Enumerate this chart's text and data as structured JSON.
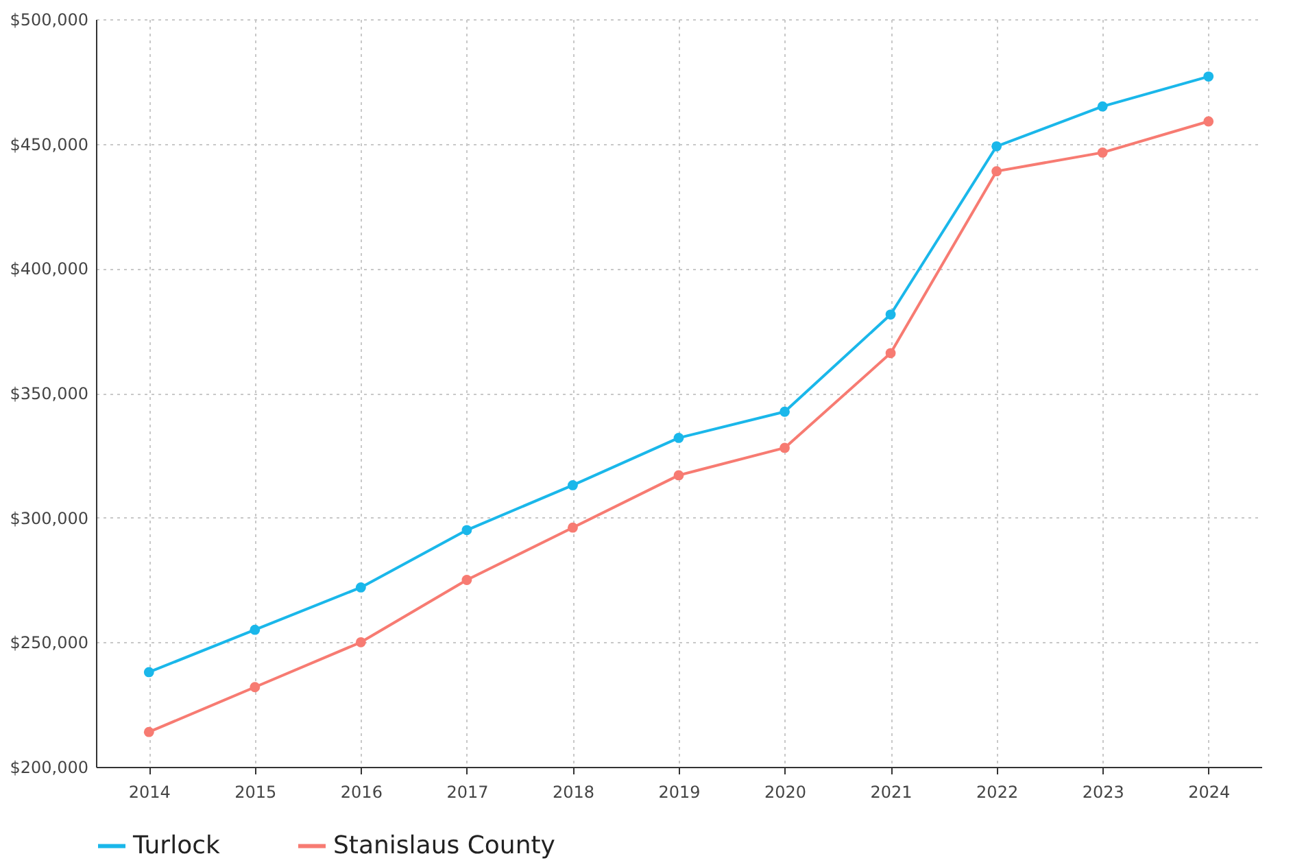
{
  "chart_data": {
    "type": "line",
    "categories": [
      "2014",
      "2015",
      "2016",
      "2017",
      "2018",
      "2019",
      "2020",
      "2021",
      "2022",
      "2023",
      "2024"
    ],
    "series": [
      {
        "name": "Turlock",
        "color": "#1ab7ea",
        "values": [
          238000,
          255000,
          272000,
          295000,
          313000,
          332000,
          342500,
          381500,
          449000,
          465000,
          477000
        ]
      },
      {
        "name": "Stanislaus  County",
        "color": "#f77b72",
        "values": [
          214000,
          232000,
          250000,
          275000,
          296000,
          317000,
          328000,
          366000,
          439000,
          446500,
          459000
        ]
      }
    ],
    "ylim": [
      200000,
      500000
    ],
    "yticks": [
      {
        "value": 200000,
        "label": "$200,000"
      },
      {
        "value": 250000,
        "label": "$250,000"
      },
      {
        "value": 300000,
        "label": "$300,000"
      },
      {
        "value": 350000,
        "label": "$350,000"
      },
      {
        "value": 400000,
        "label": "$400,000"
      },
      {
        "value": 450000,
        "label": "$450,000"
      },
      {
        "value": 500000,
        "label": "$500,000"
      }
    ],
    "grid": true,
    "legend": "bottom",
    "marker": "circle",
    "line_style": "solid"
  }
}
